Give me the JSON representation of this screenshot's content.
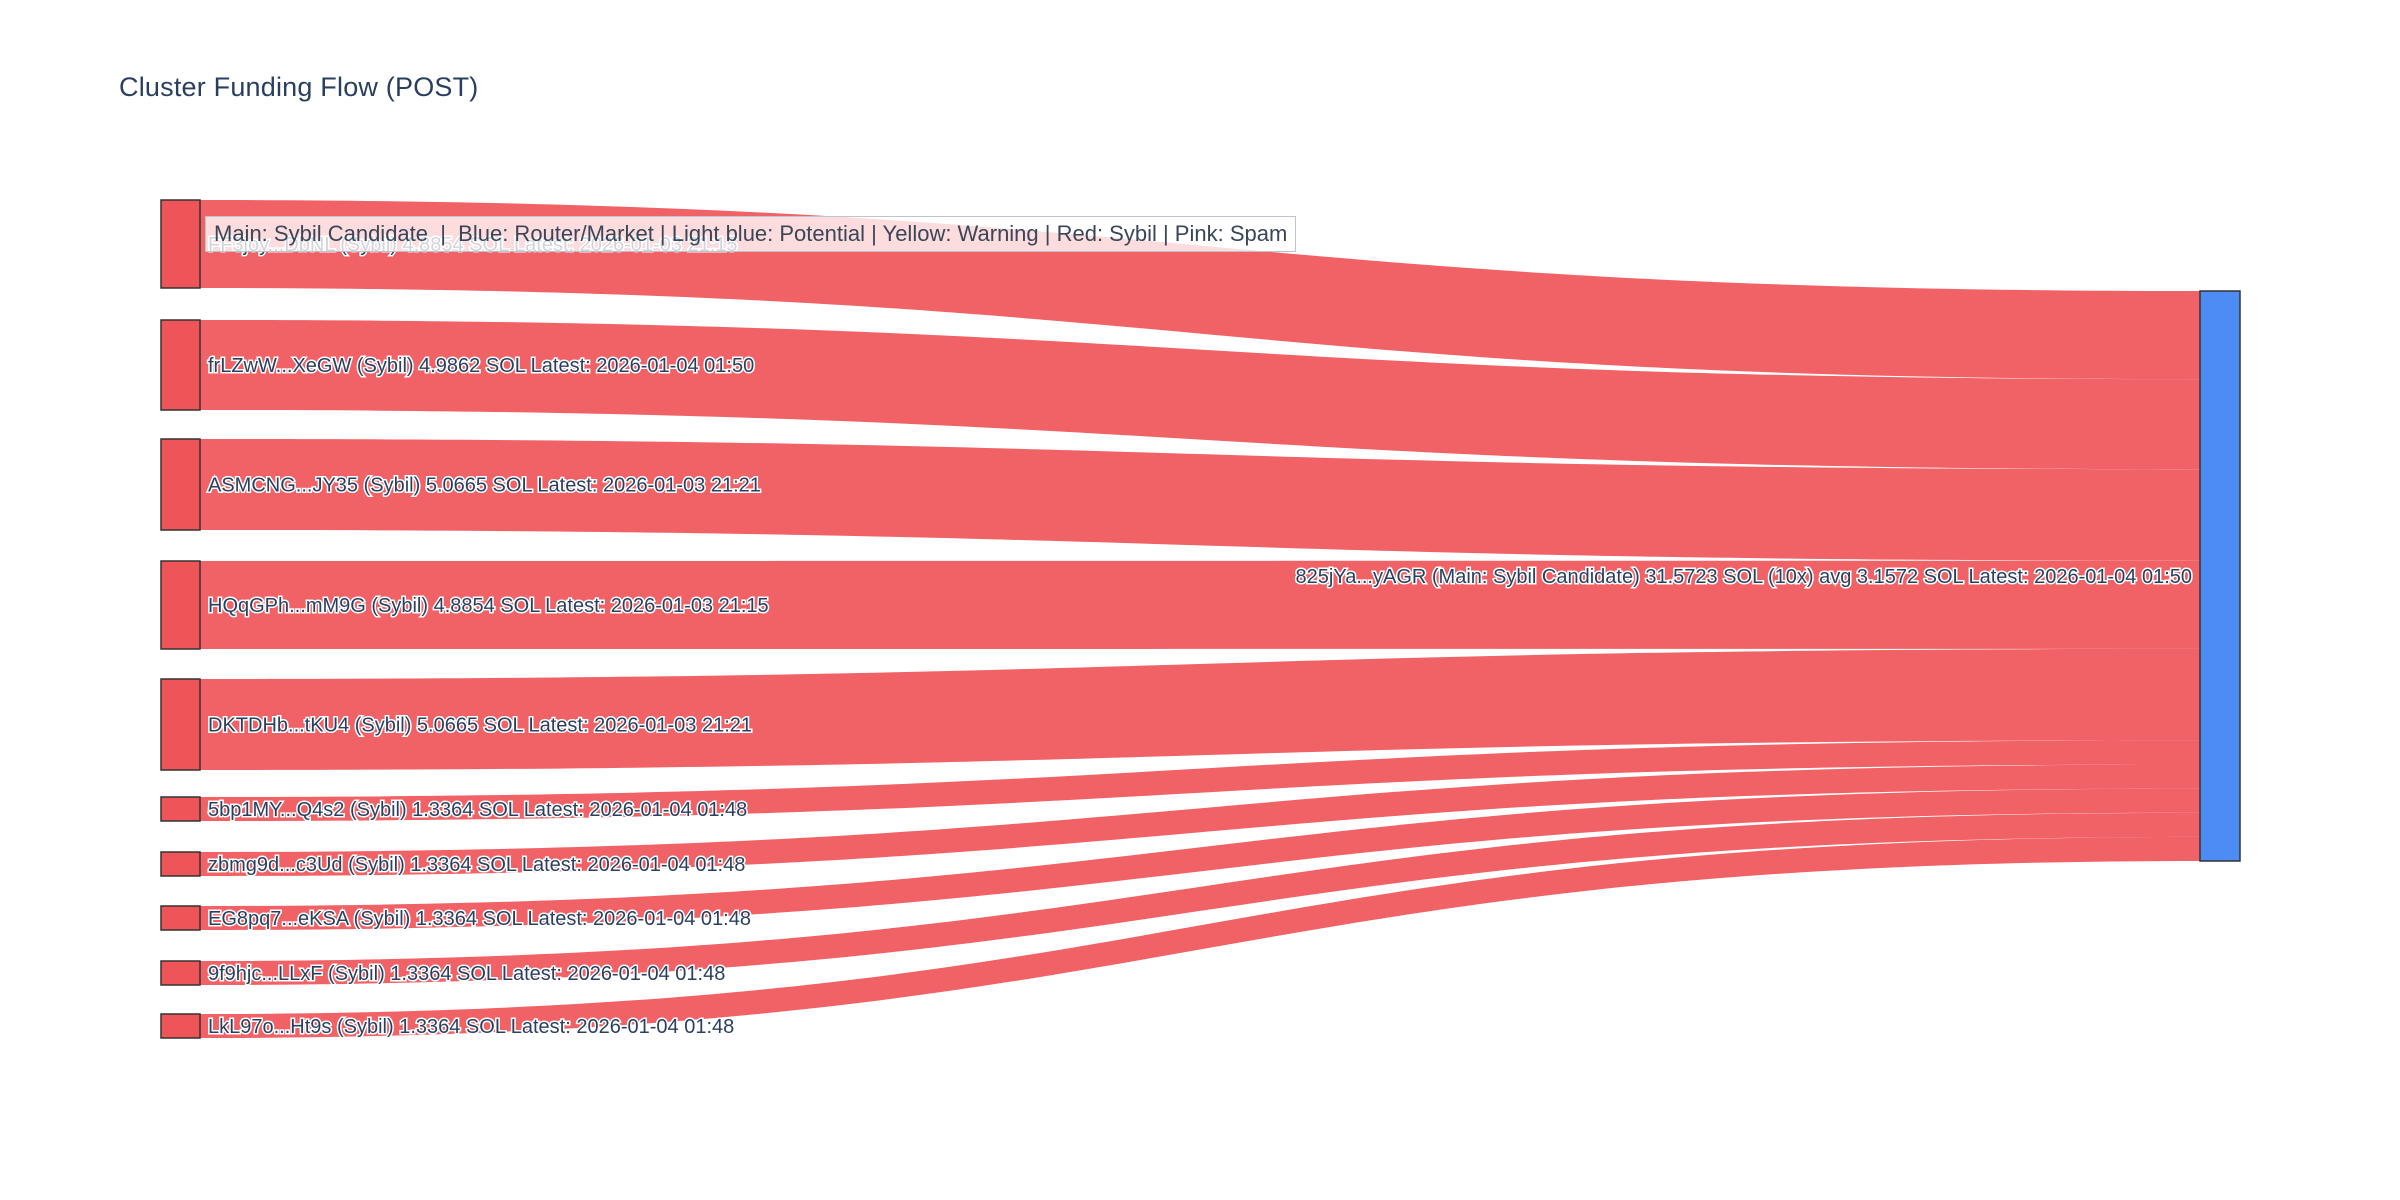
{
  "title": "Cluster Funding Flow (POST)",
  "legend": {
    "text": "Main: Sybil Candidate  |  Blue: Router/Market | Light blue: Potential | Yellow: Warning | Red: Sybil | Pink: Spam"
  },
  "colors": {
    "sybil_red": "#EF5558",
    "main_blue": "#4D8CF5",
    "node_border": "#333333",
    "text": "#2a3f5f",
    "link_red": "#EF5558"
  },
  "chart_data": {
    "type": "sankey",
    "unit": "SOL",
    "title": "Cluster Funding Flow (POST)",
    "target": {
      "id": "825jYa...yAGR",
      "role": "Main: Sybil Candidate",
      "total_sol": 31.5723,
      "tx_count": "10x",
      "avg_sol": 3.1572,
      "latest": "2026-01-04 01:50",
      "label": "825jYa...yAGR (Main: Sybil Candidate) 31.5723 SOL (10x) avg 3.1572 SOL Latest: 2026-01-04 01:50",
      "color": "#4D8CF5"
    },
    "sources": [
      {
        "id": "FF3joy...DbNL",
        "role": "Sybil",
        "value_sol": 4.8854,
        "latest": "2026-01-03 21:15",
        "label": "FF3joy...DbNL (Sybil) 4.8854 SOL Latest: 2026-01-03 21:15"
      },
      {
        "id": "frLZwW...XeGW",
        "role": "Sybil",
        "value_sol": 4.9862,
        "latest": "2026-01-04 01:50",
        "label": "frLZwW...XeGW (Sybil) 4.9862 SOL Latest: 2026-01-04 01:50"
      },
      {
        "id": "ASMCNG...JY35",
        "role": "Sybil",
        "value_sol": 5.0665,
        "latest": "2026-01-03 21:21",
        "label": "ASMCNG...JY35 (Sybil) 5.0665 SOL Latest: 2026-01-03 21:21"
      },
      {
        "id": "HQqGPh...mM9G",
        "role": "Sybil",
        "value_sol": 4.8854,
        "latest": "2026-01-03 21:15",
        "label": "HQqGPh...mM9G (Sybil) 4.8854 SOL Latest: 2026-01-03 21:15"
      },
      {
        "id": "DKTDHb...tKU4",
        "role": "Sybil",
        "value_sol": 5.0665,
        "latest": "2026-01-03 21:21",
        "label": "DKTDHb...tKU4 (Sybil) 5.0665 SOL Latest: 2026-01-03 21:21"
      },
      {
        "id": "5bp1MY...Q4s2",
        "role": "Sybil",
        "value_sol": 1.3364,
        "latest": "2026-01-04 01:48",
        "label": "5bp1MY...Q4s2 (Sybil) 1.3364 SOL Latest: 2026-01-04 01:48"
      },
      {
        "id": "zbmg9d...c3Ud",
        "role": "Sybil",
        "value_sol": 1.3364,
        "latest": "2026-01-04 01:48",
        "label": "zbmg9d...c3Ud (Sybil) 1.3364 SOL Latest: 2026-01-04 01:48"
      },
      {
        "id": "EG8pq7...eKSA",
        "role": "Sybil",
        "value_sol": 1.3364,
        "latest": "2026-01-04 01:48",
        "label": "EG8pq7...eKSA (Sybil) 1.3364 SOL Latest: 2026-01-04 01:48"
      },
      {
        "id": "9f9hjc...LLxF",
        "role": "Sybil",
        "value_sol": 1.3364,
        "latest": "2026-01-04 01:48",
        "label": "9f9hjc...LLxF (Sybil) 1.3364 SOL Latest: 2026-01-04 01:48"
      },
      {
        "id": "LkL97o...Ht9s",
        "role": "Sybil",
        "value_sol": 1.3364,
        "latest": "2026-01-04 01:48",
        "label": "LkL97o...Ht9s (Sybil) 1.3364 SOL Latest: 2026-01-04 01:48"
      }
    ]
  }
}
